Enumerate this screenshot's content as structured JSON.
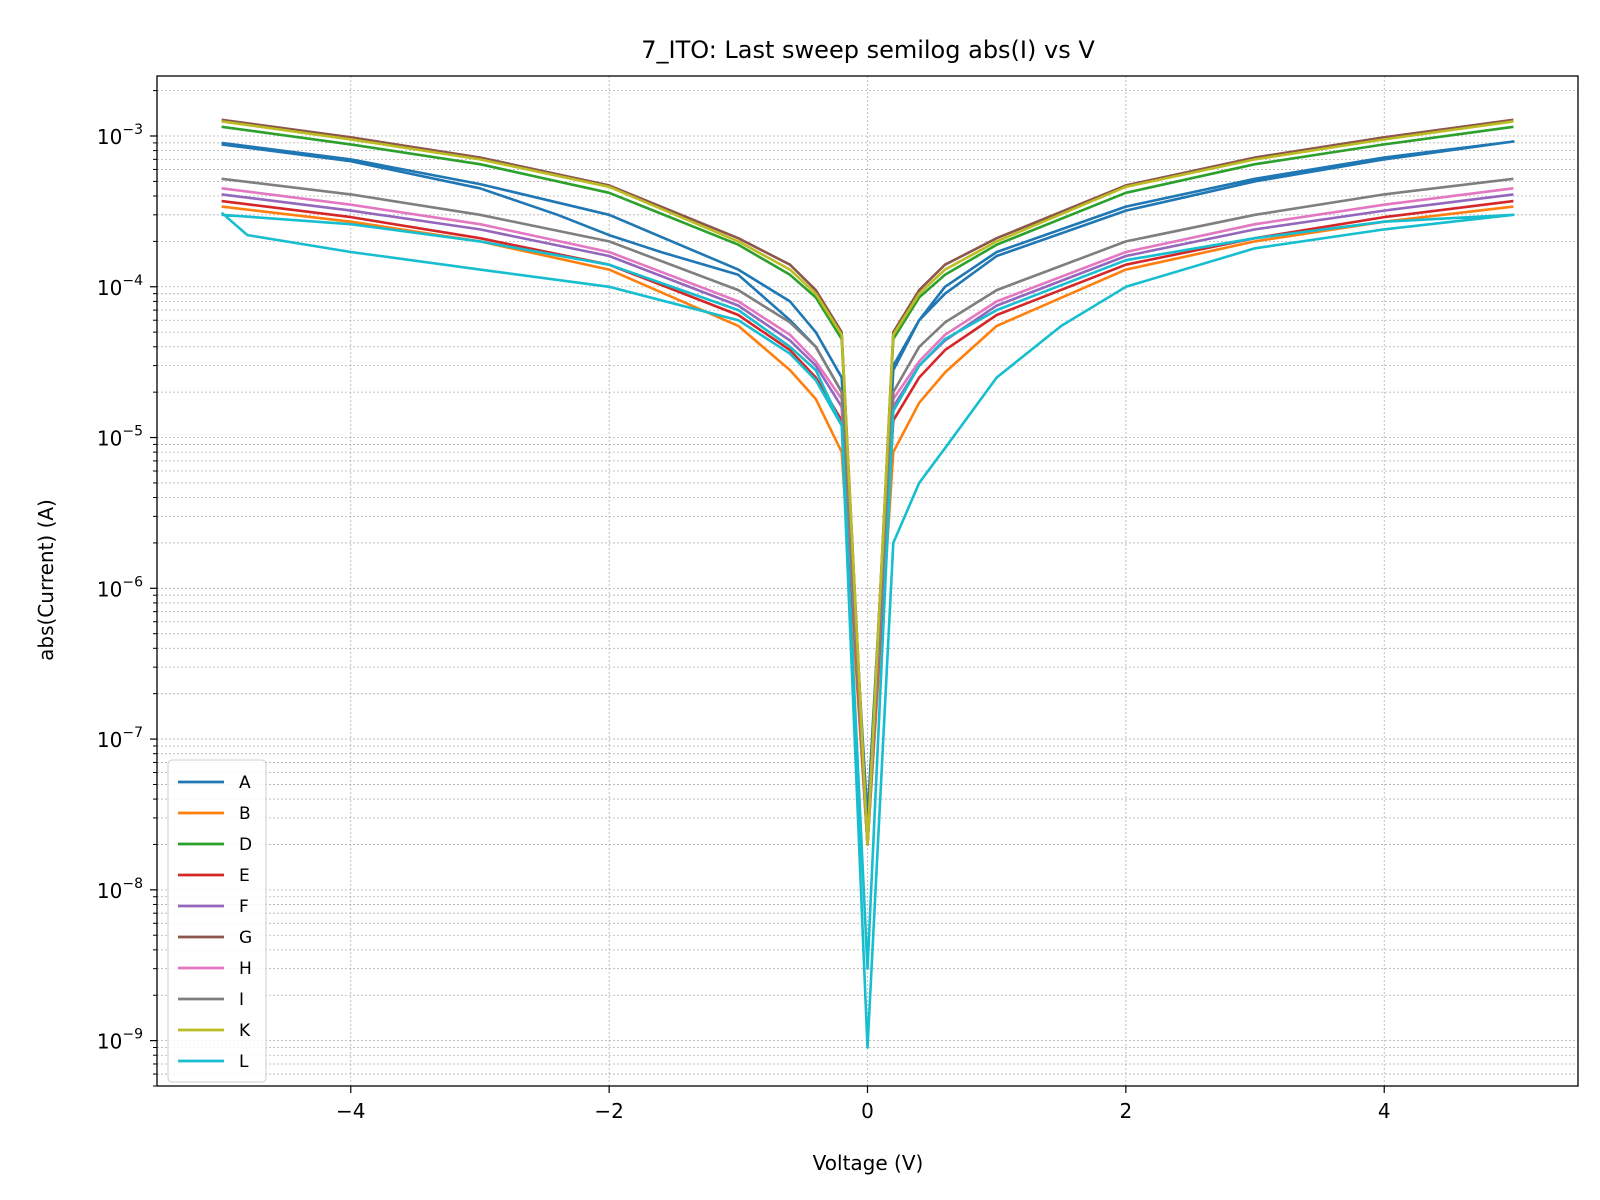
{
  "chart_data": {
    "type": "line",
    "title": "7_ITO: Last sweep semilog abs(I) vs V",
    "xlabel": "Voltage (V)",
    "ylabel": "abs(Current) (A)",
    "xlim": [
      -5.5,
      5.5
    ],
    "ylim": [
      5e-10,
      0.0025
    ],
    "yscale": "log",
    "grid": true,
    "legend": "lower-left",
    "xticks": [
      -4,
      -2,
      0,
      2,
      4
    ],
    "xtick_labels": [
      "−4",
      "−2",
      "0",
      "2",
      "4"
    ],
    "yticks": [
      {
        "value": 1e-09,
        "base": "10",
        "exp": "−9"
      },
      {
        "value": 1e-08,
        "base": "10",
        "exp": "−8"
      },
      {
        "value": 1e-07,
        "base": "10",
        "exp": "−7"
      },
      {
        "value": 1e-06,
        "base": "10",
        "exp": "−6"
      },
      {
        "value": 1e-05,
        "base": "10",
        "exp": "−5"
      },
      {
        "value": 0.0001,
        "base": "10",
        "exp": "−4"
      },
      {
        "value": 0.001,
        "base": "10",
        "exp": "−3"
      }
    ],
    "series": [
      {
        "name": "A",
        "color": "#1f77b4",
        "x": [
          -5,
          -4,
          -3,
          -2,
          -1,
          -0.6,
          -0.4,
          -0.2,
          0,
          0.2,
          0.4,
          0.6,
          1,
          2,
          3,
          4,
          5,
          4,
          3,
          2,
          1,
          0.6,
          0.4,
          0.2,
          0,
          -0.2,
          -0.4,
          -0.6,
          -1,
          -1.6,
          -2,
          -2.4,
          -3,
          -4,
          -5
        ],
        "y": [
          0.0009,
          0.0007,
          0.00048,
          0.0003,
          0.00013,
          8e-05,
          5e-05,
          2.5e-05,
          2e-08,
          2.8e-05,
          6e-05,
          9e-05,
          0.00016,
          0.00032,
          0.0005,
          0.0007,
          0.00092,
          0.00072,
          0.00052,
          0.00034,
          0.00017,
          0.0001,
          6e-05,
          3e-05,
          3e-08,
          2e-05,
          4e-05,
          6e-05,
          0.00012,
          0.00017,
          0.00022,
          0.0003,
          0.00045,
          0.00068,
          0.00088
        ]
      },
      {
        "name": "B",
        "color": "#ff7f0e",
        "x": [
          -5,
          -4,
          -3,
          -2,
          -1,
          -0.6,
          -0.4,
          -0.2,
          0,
          0.2,
          0.4,
          0.6,
          1,
          2,
          3,
          4,
          5
        ],
        "y": [
          0.00034,
          0.00027,
          0.0002,
          0.00013,
          5.5e-05,
          2.8e-05,
          1.8e-05,
          8e-06,
          2e-08,
          8e-06,
          1.7e-05,
          2.7e-05,
          5.5e-05,
          0.00013,
          0.0002,
          0.00027,
          0.00034
        ]
      },
      {
        "name": "D",
        "color": "#2ca02c",
        "x": [
          -5,
          -4,
          -3,
          -2,
          -1,
          -0.6,
          -0.4,
          -0.2,
          0,
          0.2,
          0.4,
          0.6,
          1,
          2,
          3,
          4,
          5
        ],
        "y": [
          0.00115,
          0.00088,
          0.00065,
          0.00042,
          0.00019,
          0.00012,
          8.5e-05,
          4.5e-05,
          2e-08,
          4.5e-05,
          8.5e-05,
          0.00012,
          0.00019,
          0.00042,
          0.00065,
          0.00088,
          0.00115
        ]
      },
      {
        "name": "E",
        "color": "#d62728",
        "x": [
          -5,
          -4,
          -3,
          -2,
          -1,
          -0.6,
          -0.4,
          -0.2,
          0,
          0.2,
          0.4,
          0.6,
          1,
          2,
          3,
          4,
          5
        ],
        "y": [
          0.00037,
          0.00029,
          0.00021,
          0.00014,
          6.5e-05,
          3.8e-05,
          2.5e-05,
          1.3e-05,
          2e-08,
          1.3e-05,
          2.5e-05,
          3.8e-05,
          6.5e-05,
          0.00014,
          0.00021,
          0.00029,
          0.00037
        ]
      },
      {
        "name": "F",
        "color": "#9467bd",
        "x": [
          -5,
          -4,
          -3,
          -2,
          -1,
          -0.6,
          -0.4,
          -0.2,
          0,
          0.2,
          0.4,
          0.6,
          1,
          2,
          3,
          4,
          5
        ],
        "y": [
          0.00041,
          0.00032,
          0.00024,
          0.00016,
          7.5e-05,
          4.4e-05,
          3e-05,
          1.6e-05,
          2e-08,
          1.6e-05,
          3e-05,
          4.4e-05,
          7.5e-05,
          0.00016,
          0.00024,
          0.00032,
          0.00041
        ]
      },
      {
        "name": "G",
        "color": "#8c564b",
        "x": [
          -5,
          -4,
          -3,
          -2,
          -1,
          -0.6,
          -0.4,
          -0.2,
          0,
          0.2,
          0.4,
          0.6,
          1,
          2,
          3,
          4,
          5
        ],
        "y": [
          0.00128,
          0.00098,
          0.00072,
          0.00047,
          0.00021,
          0.00014,
          9.5e-05,
          5e-05,
          2e-08,
          5e-05,
          9.5e-05,
          0.00014,
          0.00021,
          0.00047,
          0.00072,
          0.00098,
          0.00128
        ]
      },
      {
        "name": "H",
        "color": "#e377c2",
        "x": [
          -5,
          -4,
          -3,
          -2,
          -1,
          -0.6,
          -0.4,
          -0.2,
          0,
          0.2,
          0.4,
          0.6,
          1,
          2,
          3,
          4,
          5
        ],
        "y": [
          0.00045,
          0.00035,
          0.00026,
          0.00017,
          8e-05,
          4.8e-05,
          3.2e-05,
          1.8e-05,
          2e-08,
          1.8e-05,
          3.2e-05,
          4.8e-05,
          8e-05,
          0.00017,
          0.00026,
          0.00035,
          0.00045
        ]
      },
      {
        "name": "I",
        "color": "#7f7f7f",
        "x": [
          -5,
          -4,
          -3,
          -2,
          -1,
          -0.6,
          -0.4,
          -0.2,
          0,
          0.2,
          0.4,
          0.6,
          1,
          2,
          3,
          4,
          5
        ],
        "y": [
          0.00052,
          0.00041,
          0.0003,
          0.0002,
          9.5e-05,
          5.8e-05,
          4e-05,
          2e-05,
          2e-08,
          2e-05,
          4e-05,
          5.8e-05,
          9.5e-05,
          0.0002,
          0.0003,
          0.00041,
          0.00052
        ]
      },
      {
        "name": "K",
        "color": "#bcbd22",
        "x": [
          -5,
          -4,
          -3,
          -2,
          -1,
          -0.6,
          -0.4,
          -0.2,
          0,
          0.2,
          0.4,
          0.6,
          1,
          2,
          3,
          4,
          5
        ],
        "y": [
          0.00125,
          0.00095,
          0.0007,
          0.00046,
          0.0002,
          0.00013,
          9e-05,
          4.8e-05,
          2e-08,
          4.8e-05,
          9e-05,
          0.00013,
          0.0002,
          0.00046,
          0.0007,
          0.00095,
          0.00125
        ]
      },
      {
        "name": "L",
        "color": "#17becf",
        "x": [
          -5,
          -4.8,
          -4,
          -3,
          -2,
          -1,
          -0.6,
          -0.4,
          -0.2,
          0,
          0.2,
          0.4,
          0.6,
          1,
          1.5,
          2,
          3,
          4,
          5,
          4,
          3,
          2,
          1,
          0.6,
          0.4,
          0.2,
          0,
          -0.2,
          -0.4,
          -0.6,
          -1,
          -2,
          -3,
          -4,
          -5
        ],
        "y": [
          0.00031,
          0.00022,
          0.00017,
          0.00013,
          0.0001,
          6e-05,
          3.6e-05,
          2.4e-05,
          1.2e-05,
          9e-10,
          2e-06,
          5e-06,
          8.5e-06,
          2.5e-05,
          5.5e-05,
          0.0001,
          0.00018,
          0.00024,
          0.0003,
          0.00027,
          0.00021,
          0.00015,
          7e-05,
          4.5e-05,
          3e-05,
          1.5e-05,
          3e-09,
          1.2e-05,
          2.8e-05,
          4e-05,
          7e-05,
          0.00014,
          0.0002,
          0.00026,
          0.0003
        ]
      }
    ]
  }
}
